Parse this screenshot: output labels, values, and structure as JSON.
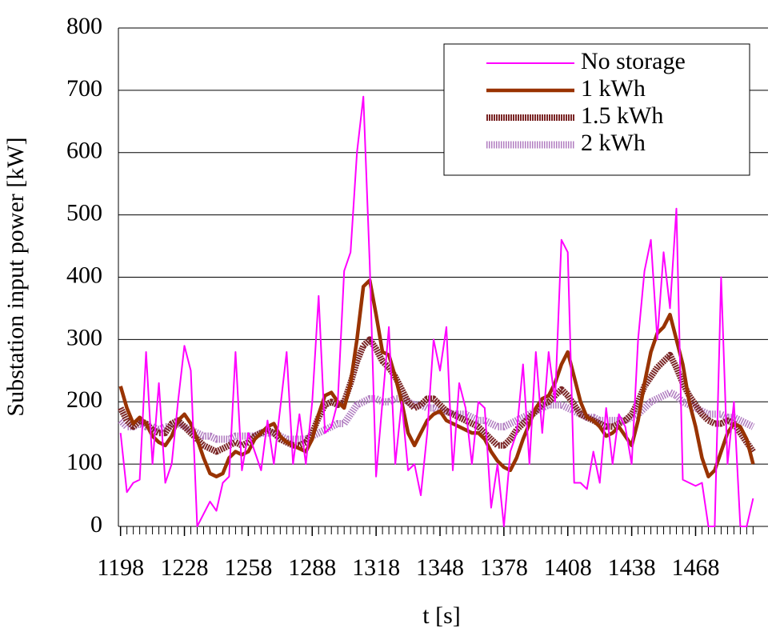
{
  "chart_data": {
    "type": "line",
    "x_label": "t [s]",
    "y_label": "Substation input power [kW]",
    "x": [
      1198,
      1201,
      1204,
      1207,
      1210,
      1213,
      1216,
      1219,
      1222,
      1225,
      1228,
      1231,
      1234,
      1237,
      1240,
      1243,
      1246,
      1249,
      1252,
      1255,
      1258,
      1261,
      1264,
      1267,
      1270,
      1273,
      1276,
      1279,
      1282,
      1285,
      1288,
      1291,
      1294,
      1297,
      1300,
      1303,
      1306,
      1309,
      1312,
      1315,
      1318,
      1321,
      1324,
      1327,
      1330,
      1333,
      1336,
      1339,
      1342,
      1345,
      1348,
      1351,
      1354,
      1357,
      1360,
      1363,
      1366,
      1369,
      1372,
      1375,
      1378,
      1381,
      1384,
      1387,
      1390,
      1393,
      1396,
      1399,
      1402,
      1405,
      1408,
      1411,
      1414,
      1417,
      1420,
      1423,
      1426,
      1429,
      1432,
      1435,
      1438,
      1441,
      1444,
      1447,
      1450,
      1453,
      1456,
      1459,
      1462,
      1465,
      1468,
      1471,
      1474,
      1477,
      1480,
      1483,
      1486,
      1489,
      1492,
      1495
    ],
    "series": [
      {
        "name": "No storage",
        "color": "#ff00ff",
        "values": [
          150,
          55,
          70,
          75,
          280,
          100,
          230,
          70,
          100,
          200,
          290,
          250,
          0,
          20,
          40,
          25,
          70,
          80,
          280,
          90,
          150,
          120,
          90,
          170,
          100,
          190,
          280,
          100,
          180,
          100,
          200,
          370,
          150,
          160,
          200,
          410,
          440,
          600,
          690,
          420,
          80,
          200,
          320,
          100,
          200,
          90,
          100,
          50,
          150,
          300,
          250,
          320,
          90,
          230,
          190,
          100,
          200,
          190,
          30,
          100,
          0,
          120,
          150,
          260,
          100,
          280,
          150,
          280,
          200,
          460,
          440,
          70,
          70,
          60,
          120,
          70,
          190,
          100,
          180,
          160,
          100,
          300,
          410,
          460,
          300,
          440,
          350,
          510,
          75,
          70,
          65,
          70,
          0,
          0,
          400,
          100,
          200,
          0,
          0,
          45
        ]
      },
      {
        "name": "1 kWh",
        "color": "#993300",
        "values": [
          225,
          190,
          165,
          175,
          165,
          145,
          135,
          130,
          145,
          170,
          180,
          165,
          140,
          110,
          85,
          80,
          85,
          110,
          120,
          115,
          120,
          140,
          150,
          160,
          165,
          145,
          135,
          130,
          125,
          120,
          140,
          180,
          210,
          215,
          200,
          190,
          230,
          300,
          385,
          395,
          340,
          280,
          275,
          240,
          200,
          150,
          130,
          150,
          170,
          180,
          185,
          170,
          165,
          160,
          155,
          150,
          150,
          140,
          120,
          105,
          95,
          90,
          110,
          140,
          165,
          190,
          205,
          210,
          230,
          260,
          280,
          240,
          200,
          175,
          170,
          160,
          145,
          150,
          160,
          145,
          130,
          170,
          230,
          280,
          310,
          320,
          340,
          300,
          260,
          200,
          160,
          110,
          80,
          90,
          120,
          150,
          165,
          160,
          140,
          100
        ]
      },
      {
        "name": "1.5 kWh",
        "color": "#7a2626",
        "values": [
          190,
          170,
          160,
          170,
          165,
          155,
          150,
          150,
          165,
          170,
          160,
          150,
          140,
          130,
          125,
          120,
          125,
          130,
          135,
          130,
          135,
          145,
          150,
          155,
          150,
          140,
          135,
          130,
          130,
          135,
          150,
          175,
          195,
          200,
          195,
          200,
          230,
          265,
          290,
          300,
          285,
          265,
          255,
          240,
          220,
          200,
          190,
          195,
          205,
          205,
          195,
          185,
          180,
          175,
          170,
          165,
          160,
          150,
          140,
          130,
          130,
          140,
          155,
          165,
          175,
          185,
          195,
          200,
          210,
          220,
          210,
          195,
          180,
          175,
          170,
          165,
          160,
          160,
          165,
          170,
          180,
          200,
          225,
          240,
          255,
          265,
          275,
          255,
          230,
          210,
          195,
          180,
          170,
          165,
          165,
          170,
          165,
          150,
          135,
          120
        ]
      },
      {
        "name": "2 kWh",
        "color": "#b07cc0",
        "values": [
          170,
          160,
          160,
          165,
          160,
          160,
          155,
          160,
          160,
          165,
          160,
          155,
          150,
          145,
          145,
          140,
          140,
          140,
          145,
          145,
          145,
          145,
          150,
          150,
          150,
          145,
          140,
          140,
          140,
          140,
          145,
          150,
          155,
          160,
          165,
          165,
          180,
          195,
          200,
          205,
          205,
          200,
          200,
          205,
          205,
          200,
          195,
          195,
          190,
          190,
          185,
          185,
          180,
          180,
          180,
          175,
          170,
          170,
          165,
          160,
          160,
          165,
          170,
          175,
          180,
          185,
          190,
          195,
          195,
          195,
          190,
          185,
          180,
          175,
          175,
          170,
          170,
          170,
          170,
          170,
          175,
          180,
          190,
          200,
          205,
          210,
          215,
          210,
          200,
          195,
          190,
          185,
          180,
          180,
          180,
          175,
          175,
          170,
          165,
          160
        ]
      }
    ],
    "xlim": [
      1197,
      1502
    ],
    "xticks": [
      1198,
      1228,
      1258,
      1288,
      1318,
      1348,
      1378,
      1408,
      1438,
      1468
    ],
    "ylim": [
      0,
      800
    ],
    "yticks": [
      0,
      100,
      200,
      300,
      400,
      500,
      600,
      700,
      800
    ],
    "grid": true,
    "legend": "upper right"
  }
}
